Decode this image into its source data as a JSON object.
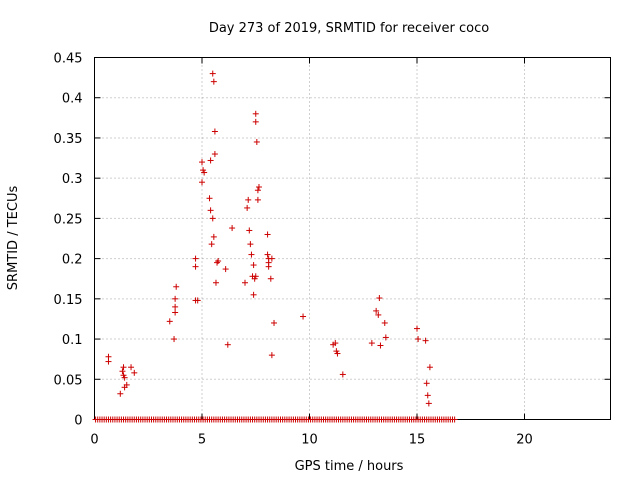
{
  "chart_data": {
    "type": "scatter",
    "title": "Day 273 of 2019, SRMTID for receiver coco",
    "xlabel": "GPS time / hours",
    "ylabel": "SRMTID / TECUs",
    "xlim": [
      0,
      24
    ],
    "ylim": [
      0,
      0.45
    ],
    "xticks": [
      0,
      5,
      10,
      15,
      20
    ],
    "yticks": [
      0,
      0.05,
      0.1,
      0.15,
      0.2,
      0.25,
      0.3,
      0.35,
      0.4,
      0.45
    ],
    "ytick_labels": [
      "0",
      "0.05",
      "0.1",
      "0.15",
      "0.2",
      "0.25",
      "0.3",
      "0.35",
      "0.4",
      "0.45"
    ],
    "grid": true,
    "marker": "+",
    "series": [
      {
        "name": "SRMTID",
        "color": "#cc0000",
        "points": [
          [
            0.65,
            0.078
          ],
          [
            0.65,
            0.072
          ],
          [
            1.2,
            0.032
          ],
          [
            1.3,
            0.06
          ],
          [
            1.35,
            0.065
          ],
          [
            1.35,
            0.055
          ],
          [
            1.4,
            0.052
          ],
          [
            1.4,
            0.04
          ],
          [
            1.5,
            0.043
          ],
          [
            1.7,
            0.065
          ],
          [
            1.85,
            0.058
          ],
          [
            3.5,
            0.122
          ],
          [
            3.7,
            0.1
          ],
          [
            3.75,
            0.133
          ],
          [
            3.75,
            0.14
          ],
          [
            3.75,
            0.15
          ],
          [
            3.8,
            0.165
          ],
          [
            4.7,
            0.2
          ],
          [
            4.7,
            0.19
          ],
          [
            4.7,
            0.148
          ],
          [
            4.8,
            0.148
          ],
          [
            5.0,
            0.32
          ],
          [
            5.0,
            0.295
          ],
          [
            5.05,
            0.31
          ],
          [
            5.1,
            0.307
          ],
          [
            5.35,
            0.275
          ],
          [
            5.4,
            0.322
          ],
          [
            5.4,
            0.26
          ],
          [
            5.45,
            0.218
          ],
          [
            5.5,
            0.43
          ],
          [
            5.5,
            0.25
          ],
          [
            5.55,
            0.42
          ],
          [
            5.55,
            0.227
          ],
          [
            5.6,
            0.33
          ],
          [
            5.6,
            0.358
          ],
          [
            5.65,
            0.17
          ],
          [
            5.7,
            0.195
          ],
          [
            5.75,
            0.197
          ],
          [
            6.1,
            0.187
          ],
          [
            6.2,
            0.093
          ],
          [
            6.4,
            0.238
          ],
          [
            7.0,
            0.17
          ],
          [
            7.1,
            0.263
          ],
          [
            7.15,
            0.273
          ],
          [
            7.2,
            0.235
          ],
          [
            7.25,
            0.218
          ],
          [
            7.3,
            0.205
          ],
          [
            7.35,
            0.178
          ],
          [
            7.4,
            0.192
          ],
          [
            7.4,
            0.155
          ],
          [
            7.45,
            0.175
          ],
          [
            7.5,
            0.38
          ],
          [
            7.5,
            0.37
          ],
          [
            7.5,
            0.178
          ],
          [
            7.55,
            0.345
          ],
          [
            7.6,
            0.285
          ],
          [
            7.6,
            0.273
          ],
          [
            7.65,
            0.289
          ],
          [
            8.05,
            0.23
          ],
          [
            8.05,
            0.205
          ],
          [
            8.1,
            0.2
          ],
          [
            8.1,
            0.195
          ],
          [
            8.1,
            0.19
          ],
          [
            8.2,
            0.175
          ],
          [
            8.25,
            0.2
          ],
          [
            8.25,
            0.08
          ],
          [
            8.35,
            0.12
          ],
          [
            9.7,
            0.128
          ],
          [
            11.1,
            0.093
          ],
          [
            11.2,
            0.095
          ],
          [
            11.25,
            0.085
          ],
          [
            11.3,
            0.082
          ],
          [
            11.55,
            0.056
          ],
          [
            12.9,
            0.095
          ],
          [
            13.1,
            0.135
          ],
          [
            13.2,
            0.13
          ],
          [
            13.25,
            0.151
          ],
          [
            13.3,
            0.092
          ],
          [
            13.5,
            0.12
          ],
          [
            13.55,
            0.102
          ],
          [
            15.0,
            0.113
          ],
          [
            15.05,
            0.1
          ],
          [
            15.4,
            0.098
          ],
          [
            15.45,
            0.045
          ],
          [
            15.5,
            0.03
          ],
          [
            15.55,
            0.02
          ],
          [
            15.6,
            0.065
          ]
        ],
        "zero_line_from": 0.05,
        "zero_line_to": 16.75
      }
    ]
  }
}
